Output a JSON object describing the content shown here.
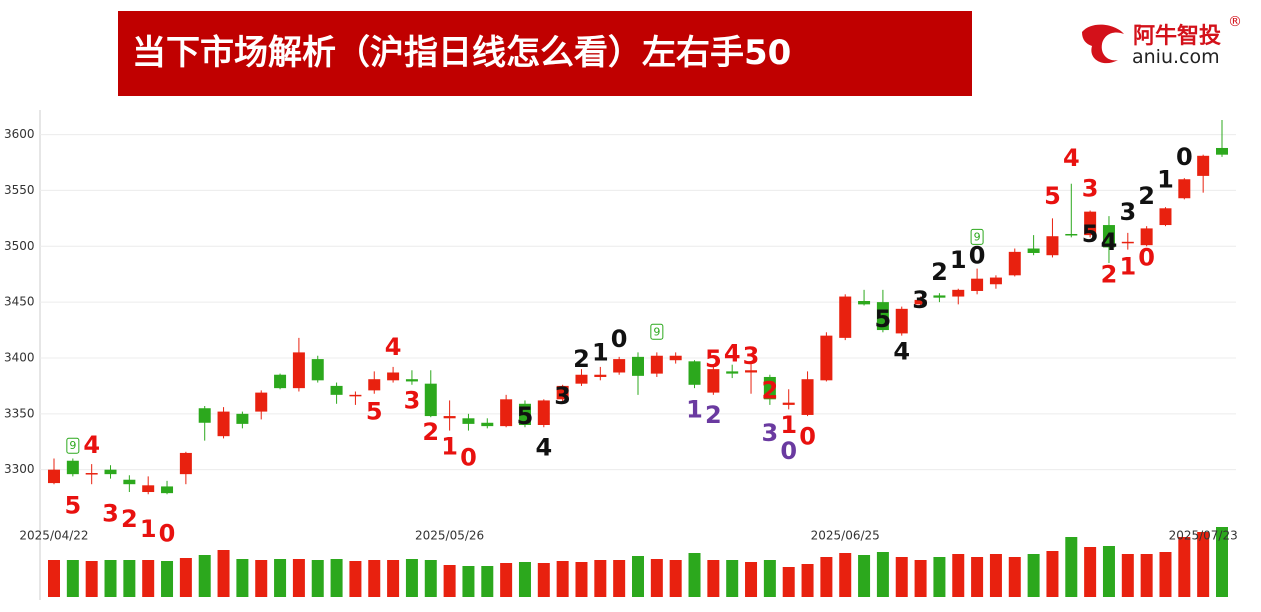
{
  "header": {
    "title": "当下市场解析（沪指日线怎么看）左右手50",
    "logo": "阿牛智投",
    "logo_mark": "®",
    "site": "aniu.com"
  },
  "chart_data": {
    "type": "candlestick",
    "categories": [
      "2025/04/22",
      null,
      null,
      null,
      null,
      null,
      null,
      null,
      null,
      null,
      null,
      null,
      null,
      null,
      null,
      null,
      null,
      null,
      null,
      null,
      null,
      "2025/05/26",
      null,
      null,
      null,
      null,
      null,
      null,
      null,
      null,
      null,
      null,
      null,
      null,
      null,
      null,
      null,
      null,
      null,
      null,
      null,
      null,
      "2025/06/25",
      null,
      null,
      null,
      null,
      null,
      null,
      null,
      null,
      null,
      null,
      null,
      null,
      null,
      null,
      null,
      null,
      null,
      null,
      "2025/07/23",
      null
    ],
    "open": [
      3288,
      3308,
      3296,
      3300,
      3291,
      3280,
      3285,
      3296,
      3355,
      3330,
      3350,
      3352,
      3385,
      3373,
      3399,
      3375,
      3366,
      3371,
      3380,
      3381,
      3377,
      3346,
      3346,
      3342,
      3339,
      3359,
      3340,
      3363,
      3377,
      3383,
      3387,
      3401,
      3386,
      3398,
      3397,
      3369,
      3388,
      3387,
      3383,
      3358,
      3349,
      3380,
      3418,
      3451,
      3450,
      3422,
      3448,
      3456,
      3455,
      3460,
      3466,
      3474,
      3498,
      3492,
      3511,
      3510,
      3519,
      3503,
      3501,
      3519,
      3543,
      3563,
      3588
    ],
    "high": [
      3310,
      3310,
      3305,
      3304,
      3295,
      3294,
      3290,
      3316,
      3357,
      3356,
      3352,
      3371,
      3386,
      3418,
      3402,
      3378,
      3370,
      3388,
      3392,
      3389,
      3389,
      3362,
      3350,
      3346,
      3367,
      3362,
      3363,
      3376,
      3390,
      3392,
      3401,
      3405,
      3405,
      3405,
      3398,
      3392,
      3394,
      3395,
      3385,
      3372,
      3388,
      3423,
      3457,
      3461,
      3461,
      3446,
      3455,
      3458,
      3462,
      3480,
      3474,
      3498,
      3510,
      3525,
      3556,
      3532,
      3527,
      3512,
      3518,
      3535,
      3561,
      3582,
      3613
    ],
    "low": [
      3287,
      3294,
      3287,
      3292,
      3280,
      3278,
      3278,
      3287,
      3326,
      3328,
      3337,
      3345,
      3372,
      3370,
      3378,
      3359,
      3358,
      3368,
      3378,
      3376,
      3347,
      3335,
      3335,
      3337,
      3338,
      3338,
      3338,
      3361,
      3375,
      3380,
      3385,
      3367,
      3383,
      3395,
      3373,
      3367,
      3382,
      3368,
      3358,
      3354,
      3348,
      3379,
      3416,
      3447,
      3423,
      3420,
      3445,
      3450,
      3448,
      3457,
      3462,
      3473,
      3492,
      3490,
      3508,
      3508,
      3485,
      3497,
      3500,
      3518,
      3542,
      3548,
      3580
    ],
    "close": [
      3300,
      3296,
      3297,
      3296,
      3287,
      3286,
      3279,
      3315,
      3342,
      3352,
      3341,
      3369,
      3373,
      3405,
      3380,
      3367,
      3367,
      3381,
      3387,
      3379,
      3348,
      3348,
      3341,
      3339,
      3363,
      3340,
      3362,
      3375,
      3385,
      3385,
      3399,
      3384,
      3402,
      3402,
      3376,
      3390,
      3386,
      3389,
      3363,
      3360,
      3381,
      3420,
      3455,
      3448,
      3425,
      3444,
      3452,
      3454,
      3461,
      3471,
      3472,
      3495,
      3494,
      3509,
      3510,
      3531,
      3499,
      3504,
      3516,
      3534,
      3560,
      3581,
      3582
    ],
    "volume": [
      37,
      37,
      36,
      37,
      37,
      37,
      36,
      39,
      42,
      47,
      38,
      37,
      38,
      38,
      37,
      38,
      36,
      37,
      37,
      38,
      37,
      32,
      31,
      31,
      34,
      35,
      34,
      36,
      35,
      37,
      37,
      41,
      38,
      37,
      44,
      37,
      37,
      35,
      37,
      30,
      33,
      40,
      44,
      42,
      45,
      40,
      37,
      40,
      43,
      40,
      43,
      40,
      43,
      46,
      60,
      50,
      51,
      43,
      43,
      45,
      60,
      65,
      70
    ],
    "up_color": "#e8210f",
    "down_color": "#2ca81d",
    "ylim": [
      3246,
      3622
    ],
    "yticks": [
      3300,
      3350,
      3400,
      3450,
      3500,
      3550,
      3600
    ],
    "grid": true,
    "annotations": [
      {
        "label": "9",
        "index": 1,
        "price": 3321,
        "color": "#2ca81d",
        "badge": true
      },
      {
        "label": "4",
        "index": 2,
        "price": 3321,
        "color": "#e8110f"
      },
      {
        "label": "5",
        "index": 1,
        "price": 3267,
        "color": "#e8110f"
      },
      {
        "label": "3",
        "index": 3,
        "price": 3260,
        "color": "#e8110f"
      },
      {
        "label": "2",
        "index": 4,
        "price": 3255,
        "color": "#e8110f"
      },
      {
        "label": "1",
        "index": 5,
        "price": 3246,
        "color": "#e8110f"
      },
      {
        "label": "0",
        "index": 6,
        "price": 3242,
        "color": "#e8110f"
      },
      {
        "label": "4",
        "index": 18,
        "price": 3409,
        "color": "#e8110f"
      },
      {
        "label": "5",
        "index": 17,
        "price": 3351,
        "color": "#e8110f"
      },
      {
        "label": "3",
        "index": 19,
        "price": 3361,
        "color": "#e8110f"
      },
      {
        "label": "2",
        "index": 20,
        "price": 3333,
        "color": "#e8110f"
      },
      {
        "label": "1",
        "index": 21,
        "price": 3320,
        "color": "#e8110f"
      },
      {
        "label": "0",
        "index": 22,
        "price": 3310,
        "color": "#e8110f"
      },
      {
        "label": "5",
        "index": 25,
        "price": 3347,
        "color": "#111111"
      },
      {
        "label": "4",
        "index": 26,
        "price": 3319,
        "color": "#111111"
      },
      {
        "label": "3",
        "index": 27,
        "price": 3365,
        "color": "#111111"
      },
      {
        "label": "2",
        "index": 28,
        "price": 3398,
        "color": "#111111"
      },
      {
        "label": "1",
        "index": 29,
        "price": 3404,
        "color": "#111111"
      },
      {
        "label": "0",
        "index": 30,
        "price": 3416,
        "color": "#111111"
      },
      {
        "label": "9",
        "index": 32,
        "price": 3423,
        "color": "#2ca81d",
        "badge": true
      },
      {
        "label": "5",
        "index": 35,
        "price": 3398,
        "color": "#e8110f"
      },
      {
        "label": "4",
        "index": 36,
        "price": 3403,
        "color": "#e8110f"
      },
      {
        "label": "3",
        "index": 37,
        "price": 3401,
        "color": "#e8110f"
      },
      {
        "label": "2",
        "index": 38,
        "price": 3370,
        "color": "#e8110f"
      },
      {
        "label": "1",
        "index": 39,
        "price": 3339,
        "color": "#e8110f"
      },
      {
        "label": "0",
        "index": 40,
        "price": 3329,
        "color": "#e8110f"
      },
      {
        "label": "1",
        "index": 34,
        "price": 3353,
        "color": "#6a3aa0"
      },
      {
        "label": "2",
        "index": 35,
        "price": 3348,
        "color": "#6a3aa0"
      },
      {
        "label": "3",
        "index": 38,
        "price": 3332,
        "color": "#6a3aa0"
      },
      {
        "label": "0",
        "index": 39,
        "price": 3316,
        "color": "#6a3aa0"
      },
      {
        "label": "5",
        "index": 44,
        "price": 3434,
        "color": "#111111"
      },
      {
        "label": "4",
        "index": 45,
        "price": 3405,
        "color": "#111111"
      },
      {
        "label": "3",
        "index": 46,
        "price": 3451,
        "color": "#111111"
      },
      {
        "label": "2",
        "index": 47,
        "price": 3476,
        "color": "#111111"
      },
      {
        "label": "1",
        "index": 48,
        "price": 3487,
        "color": "#111111"
      },
      {
        "label": "0",
        "index": 49,
        "price": 3491,
        "color": "#111111"
      },
      {
        "label": "9",
        "index": 49,
        "price": 3508,
        "color": "#2ca81d",
        "badge": true
      },
      {
        "label": "5",
        "index": 53,
        "price": 3544,
        "color": "#e8110f"
      },
      {
        "label": "4",
        "index": 54,
        "price": 3578,
        "color": "#e8110f"
      },
      {
        "label": "3",
        "index": 55,
        "price": 3551,
        "color": "#e8110f"
      },
      {
        "label": "2",
        "index": 56,
        "price": 3474,
        "color": "#e8110f"
      },
      {
        "label": "1",
        "index": 57,
        "price": 3481,
        "color": "#e8110f"
      },
      {
        "label": "0",
        "index": 58,
        "price": 3489,
        "color": "#e8110f"
      },
      {
        "label": "5",
        "index": 55,
        "price": 3510,
        "color": "#111111"
      },
      {
        "label": "4",
        "index": 56,
        "price": 3503,
        "color": "#111111"
      },
      {
        "label": "3",
        "index": 57,
        "price": 3530,
        "color": "#111111"
      },
      {
        "label": "2",
        "index": 58,
        "price": 3544,
        "color": "#111111"
      },
      {
        "label": "1",
        "index": 59,
        "price": 3559,
        "color": "#111111"
      },
      {
        "label": "0",
        "index": 60,
        "price": 3579,
        "color": "#111111"
      }
    ]
  }
}
